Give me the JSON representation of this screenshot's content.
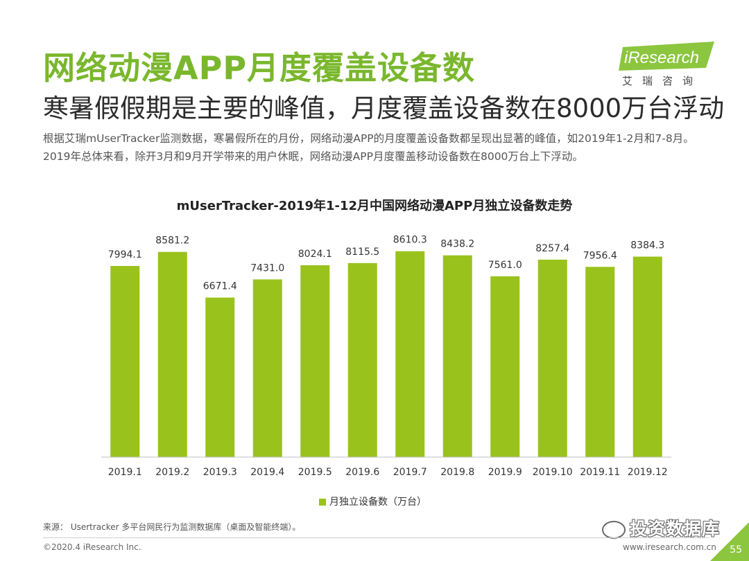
{
  "header": {
    "title": "网络动漫APP月度覆盖设备数",
    "subtitle": "寒暑假假期是主要的峰值，月度覆盖设备数在8000万台浮动",
    "body": "根据艾瑞mUserTracker监测数据，寒暑假所在的月份，网络动漫APP的月度覆盖设备数都呈现出显著的峰值，如2019年1-2月和7-8月。2019年总体来看，除开3月和9月开学带来的用户休眠，网络动漫APP月度覆盖移动设备数在8000万台上下浮动。"
  },
  "logo": {
    "brand": "iResearch",
    "cn": "艾瑞咨询",
    "accent": "#8cc63f"
  },
  "chart_data": {
    "type": "bar",
    "title": "mUserTracker-2019年1-12月中国网络动漫APP月独立设备数走势",
    "categories": [
      "2019.1",
      "2019.2",
      "2019.3",
      "2019.4",
      "2019.5",
      "2019.6",
      "2019.7",
      "2019.8",
      "2019.9",
      "2019.10",
      "2019.11",
      "2019.12"
    ],
    "series": [
      {
        "name": "月独立设备数（万台）",
        "color": "#99c31c",
        "values": [
          7994.1,
          8581.2,
          6671.4,
          7431.0,
          8024.1,
          8115.5,
          8610.3,
          8438.2,
          7561.0,
          8257.4,
          7956.4,
          8384.3
        ],
        "labels": [
          "7994.1",
          "8581.2",
          "6671.4",
          "7431.0",
          "8024.1",
          "8115.5",
          "8610.3",
          "8438.2",
          "7561.0",
          "8257.4",
          "7956.4",
          "8384.3"
        ]
      }
    ],
    "ylim": [
      0,
      9500
    ],
    "grid": false,
    "legend": "bottom"
  },
  "footer": {
    "source": "来源： Usertracker 多平台网民行为监测数据库（桌面及智能终端）。",
    "copyright": "©2020.4 iResearch Inc.",
    "site": "www.iresearch.com.cn",
    "page": "55",
    "watermark": "投资数据库"
  }
}
